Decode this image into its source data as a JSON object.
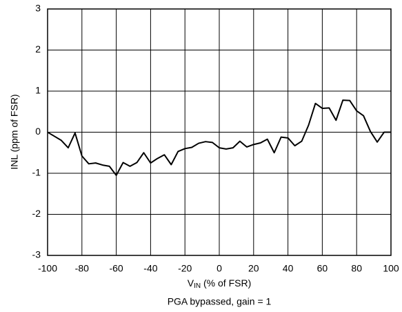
{
  "chart_data": {
    "type": "line",
    "ylabel": "INL (ppm of FSR)",
    "xlabel": [
      "V",
      "IN",
      " (% of FSR)"
    ],
    "caption": "PGA bypassed, gain = 1",
    "x": [
      -100,
      -96,
      -92,
      -88,
      -84,
      -80,
      -76,
      -72,
      -68,
      -64,
      -60,
      -56,
      -52,
      -48,
      -44,
      -40,
      -36,
      -32,
      -28,
      -24,
      -20,
      -16,
      -12,
      -8,
      -4,
      0,
      4,
      8,
      12,
      16,
      20,
      24,
      28,
      32,
      36,
      40,
      44,
      48,
      52,
      56,
      60,
      64,
      68,
      72,
      76,
      80,
      84,
      88,
      92,
      96,
      100
    ],
    "series": [
      {
        "color": "#000000",
        "values": [
          0,
          -0.1,
          -0.2,
          -0.38,
          -0.02,
          -0.58,
          -0.77,
          -0.75,
          -0.8,
          -0.83,
          -1.05,
          -0.74,
          -0.83,
          -0.74,
          -0.5,
          -0.75,
          -0.64,
          -0.55,
          -0.79,
          -0.47,
          -0.4,
          -0.37,
          -0.27,
          -0.23,
          -0.25,
          -0.38,
          -0.41,
          -0.38,
          -0.22,
          -0.36,
          -0.3,
          -0.26,
          -0.17,
          -0.5,
          -0.12,
          -0.14,
          -0.33,
          -0.22,
          0.17,
          0.7,
          0.58,
          0.59,
          0.29,
          0.78,
          0.77,
          0.52,
          0.4,
          0.02,
          -0.24,
          0,
          0
        ]
      }
    ],
    "xlim": [
      -100,
      100
    ],
    "xticks": [
      -100,
      -80,
      -60,
      -40,
      -20,
      0,
      20,
      40,
      60,
      80,
      100
    ],
    "ylim": [
      -3,
      3
    ],
    "yticks": [
      -3,
      -2,
      -1,
      0,
      1,
      2,
      3
    ],
    "grid": true
  }
}
